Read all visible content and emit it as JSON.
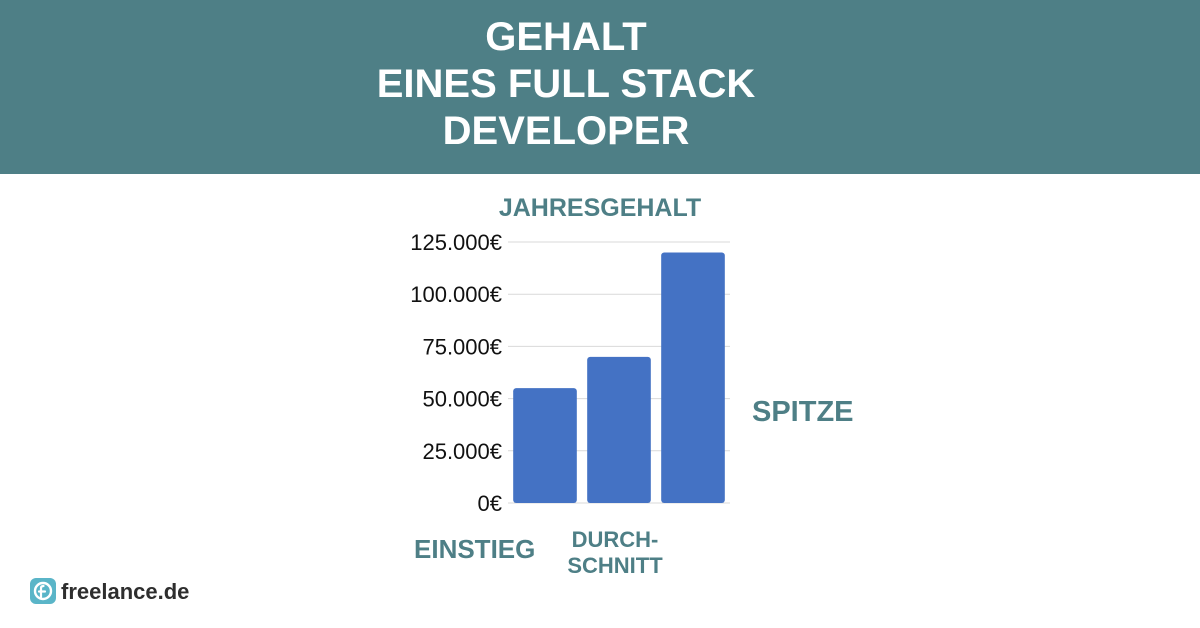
{
  "header": {
    "title_lines": [
      "GEHALT",
      "EINES FULL STACK",
      "DEVELOPER"
    ],
    "background_color": "#4e7f86"
  },
  "chart_data": {
    "type": "bar",
    "title": "JAHRESGEHALT",
    "categories": [
      "EINSTIEG",
      "DURCH-SCHNITT",
      "SPITZE"
    ],
    "category_label_lines": [
      [
        "EINSTIEG"
      ],
      [
        "DURCH-",
        "SCHNITT"
      ],
      [
        "SPITZE"
      ]
    ],
    "values": [
      55000,
      70000,
      120000
    ],
    "ylim": [
      0,
      125000
    ],
    "yticks": [
      0,
      25000,
      50000,
      75000,
      100000,
      125000
    ],
    "ytick_labels": [
      "0€",
      "25.000€",
      "50.000€",
      "75.000€",
      "100.000€",
      "125.000€"
    ],
    "grid": true,
    "bar_color": "#4472c4",
    "label_color": "#4e7f86"
  },
  "branding": {
    "logo_text": "freelance.de",
    "logo_icon": "freelance-logo-icon",
    "logo_color": "#5ab5c8"
  }
}
